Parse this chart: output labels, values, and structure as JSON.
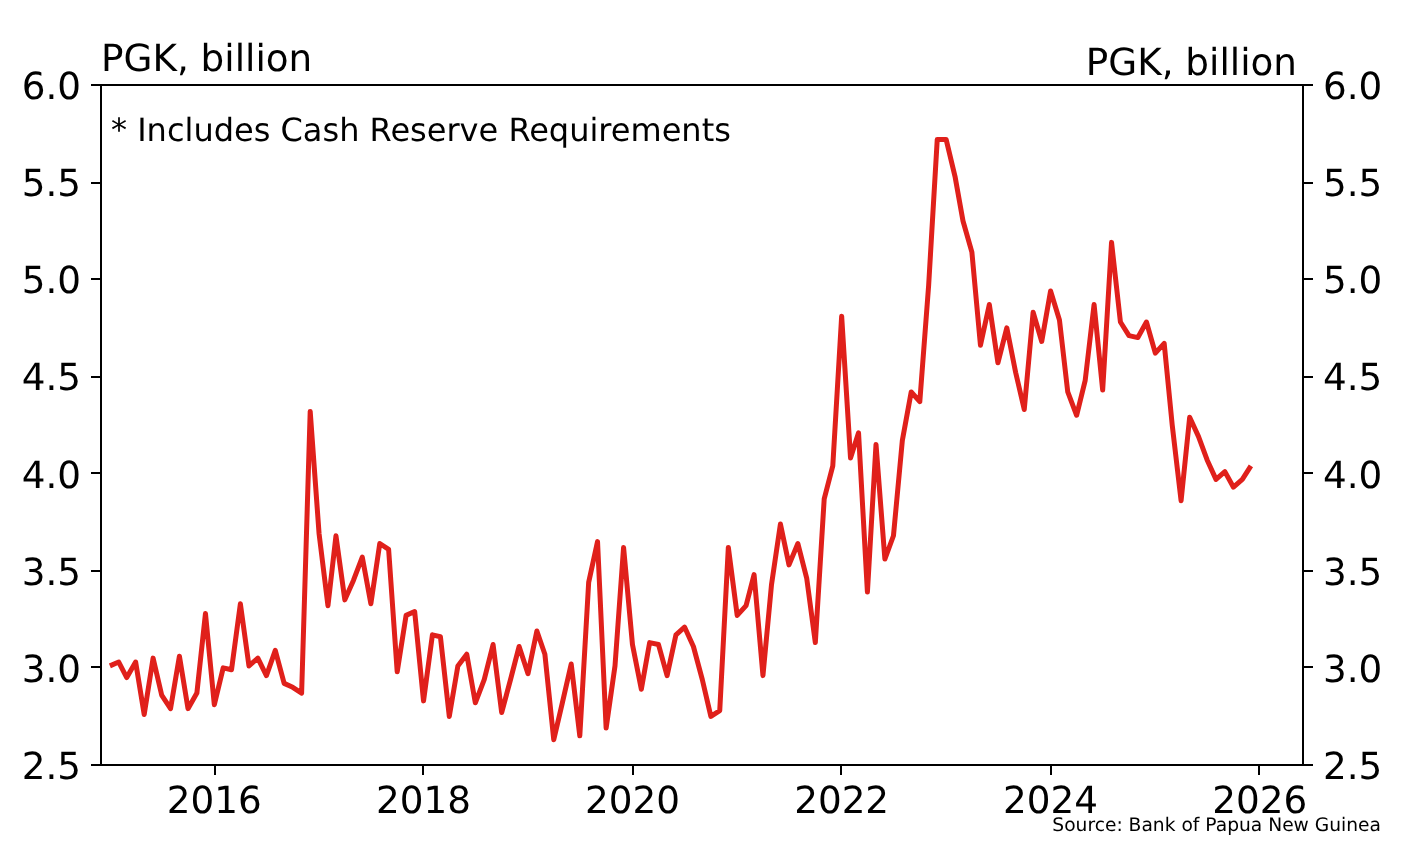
{
  "chart_data": {
    "type": "line",
    "ylabel": "PGK, billion",
    "y2label": "PGK, billion",
    "annotations": [
      "* Includes Cash Reserve Requirements",
      "Source: Bank of Papua New Guinea"
    ],
    "x": [
      "2015-01",
      "2015-02",
      "2015-03",
      "2015-04",
      "2015-05",
      "2015-06",
      "2015-07",
      "2015-08",
      "2015-09",
      "2015-10",
      "2015-11",
      "2015-12",
      "2016-01",
      "2016-02",
      "2016-03",
      "2016-04",
      "2016-05",
      "2016-06",
      "2016-07",
      "2016-08",
      "2016-09",
      "2016-10",
      "2016-11",
      "2016-12",
      "2017-01",
      "2017-02",
      "2017-03",
      "2017-04",
      "2017-05",
      "2017-06",
      "2017-07",
      "2017-08",
      "2017-09",
      "2017-10",
      "2017-11",
      "2017-12",
      "2018-01",
      "2018-02",
      "2018-03",
      "2018-04",
      "2018-05",
      "2018-06",
      "2018-07",
      "2018-08",
      "2018-09",
      "2018-10",
      "2018-11",
      "2018-12",
      "2019-01",
      "2019-02",
      "2019-03",
      "2019-04",
      "2019-05",
      "2019-06",
      "2019-07",
      "2019-08",
      "2019-09",
      "2019-10",
      "2019-11",
      "2019-12",
      "2020-01",
      "2020-02",
      "2020-03",
      "2020-04",
      "2020-05",
      "2020-06",
      "2020-07",
      "2020-08",
      "2020-09",
      "2020-10",
      "2020-11",
      "2020-12",
      "2021-01",
      "2021-02",
      "2021-03",
      "2021-04",
      "2021-05",
      "2021-06",
      "2021-07",
      "2021-08",
      "2021-09",
      "2021-10",
      "2021-11",
      "2021-12",
      "2022-01",
      "2022-02",
      "2022-03",
      "2022-04",
      "2022-05",
      "2022-06",
      "2022-07",
      "2022-08",
      "2022-09",
      "2022-10",
      "2022-11",
      "2022-12",
      "2023-01",
      "2023-02",
      "2023-03",
      "2023-04",
      "2023-05",
      "2023-06",
      "2023-07",
      "2023-08",
      "2023-09",
      "2023-10",
      "2023-11",
      "2023-12",
      "2024-01",
      "2024-02",
      "2024-03",
      "2024-04",
      "2024-05",
      "2024-06",
      "2024-07",
      "2024-08",
      "2024-09",
      "2024-10",
      "2024-11",
      "2024-12",
      "2025-01",
      "2025-02",
      "2025-03",
      "2025-04",
      "2025-05",
      "2025-06",
      "2025-07",
      "2025-08",
      "2025-09",
      "2025-10",
      "2025-11",
      "2025-12"
    ],
    "series": [
      {
        "color": "#e0201b",
        "values": [
          3.01,
          3.03,
          2.95,
          3.03,
          2.76,
          3.05,
          2.86,
          2.79,
          3.06,
          2.79,
          2.87,
          3.28,
          2.81,
          3.0,
          2.99,
          3.33,
          3.01,
          3.05,
          2.96,
          3.09,
          2.92,
          2.9,
          2.87,
          4.32,
          3.69,
          3.32,
          3.68,
          3.35,
          3.45,
          3.57,
          3.33,
          3.64,
          3.61,
          2.98,
          3.27,
          3.29,
          2.83,
          3.17,
          3.16,
          2.75,
          3.01,
          3.07,
          2.82,
          2.94,
          3.12,
          2.77,
          2.94,
          3.11,
          2.97,
          3.19,
          3.07,
          2.63,
          2.82,
          3.02,
          2.65,
          3.44,
          3.65,
          2.69,
          3.01,
          3.62,
          3.12,
          2.89,
          3.13,
          3.12,
          2.96,
          3.17,
          3.21,
          3.11,
          2.94,
          2.75,
          2.78,
          3.62,
          3.27,
          3.32,
          3.48,
          2.96,
          3.43,
          3.74,
          3.53,
          3.64,
          3.46,
          3.13,
          3.87,
          4.04,
          4.81,
          4.08,
          4.21,
          3.39,
          4.15,
          3.56,
          3.68,
          4.17,
          4.42,
          4.37,
          4.97,
          5.72,
          5.72,
          5.53,
          5.3,
          5.14,
          4.66,
          4.87,
          4.57,
          4.75,
          4.52,
          4.33,
          4.83,
          4.68,
          4.94,
          4.79,
          4.42,
          4.3,
          4.48,
          4.87,
          4.43,
          5.19,
          4.78,
          4.71,
          4.7,
          4.78,
          4.62,
          4.67,
          4.25,
          3.86,
          4.29,
          4.19,
          4.07,
          3.97,
          4.01,
          3.93,
          3.97,
          4.04
        ]
      }
    ],
    "xlim": [
      "2014-12",
      "2026-06"
    ],
    "xticks": [
      "2016",
      "2018",
      "2020",
      "2022",
      "2024",
      "2026"
    ],
    "ylim": [
      2.5,
      6.0
    ],
    "yticks": [
      {
        "value": 2.5,
        "label": "2.5"
      },
      {
        "value": 3.0,
        "label": "3.0"
      },
      {
        "value": 3.5,
        "label": "3.5"
      },
      {
        "value": 4.0,
        "label": "4.0"
      },
      {
        "value": 4.5,
        "label": "4.5"
      },
      {
        "value": 5.0,
        "label": "5.0"
      },
      {
        "value": 5.5,
        "label": "5.5"
      },
      {
        "value": 6.0,
        "label": "6.0"
      }
    ],
    "y2lim": [
      2.5,
      6.0
    ],
    "y2ticks": [
      {
        "value": 2.5,
        "label": "2.5"
      },
      {
        "value": 3.0,
        "label": "3.0"
      },
      {
        "value": 3.5,
        "label": "3.5"
      },
      {
        "value": 4.0,
        "label": "4.0"
      },
      {
        "value": 4.5,
        "label": "4.5"
      },
      {
        "value": 5.0,
        "label": "5.0"
      },
      {
        "value": 5.5,
        "label": "5.5"
      },
      {
        "value": 6.0,
        "label": "6.0"
      }
    ],
    "grid": false,
    "marker": "none",
    "line_style": "solid"
  }
}
